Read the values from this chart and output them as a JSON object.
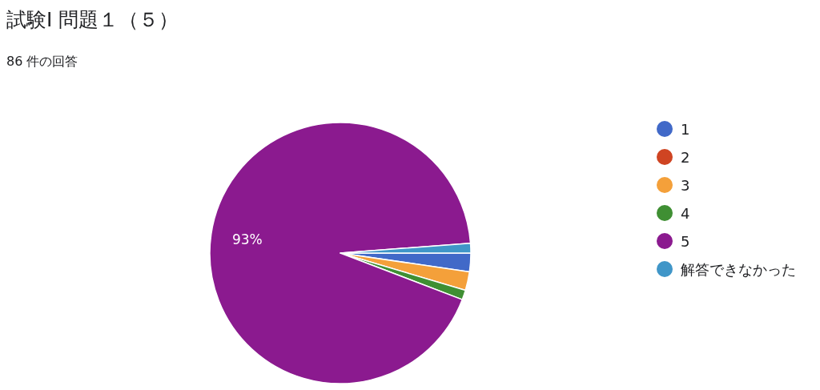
{
  "chart_data": {
    "type": "pie",
    "title": "試験Ⅰ 問題１（５）",
    "subtitle": "86 件の回答",
    "categories": [
      "1",
      "2",
      "3",
      "4",
      "5",
      "解答できなかった"
    ],
    "values": [
      2.3,
      0,
      2.3,
      1.2,
      93,
      1.2
    ],
    "colors": [
      "#4169c8",
      "#cf4422",
      "#f4a03a",
      "#3f8f33",
      "#8b1a8f",
      "#4096c8"
    ],
    "value_labels": [
      null,
      null,
      null,
      null,
      "93%",
      null
    ],
    "legend": "right"
  }
}
